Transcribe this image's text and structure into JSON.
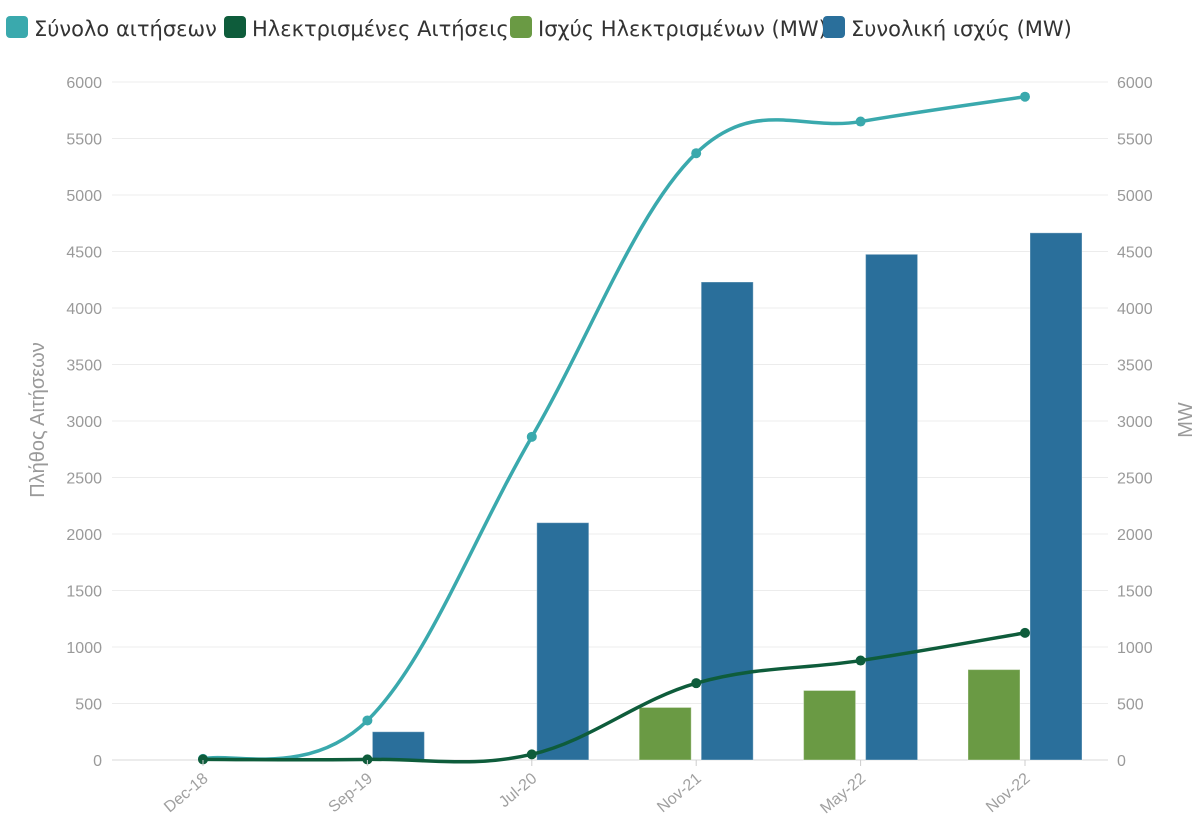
{
  "chart_data": {
    "type": "bar",
    "categories": [
      "Dec-18",
      "Sep-19",
      "Jul-20",
      "Nov-21",
      "May-22",
      "Nov-22"
    ],
    "series": [
      {
        "name": "Σύνολο αιτήσεων",
        "kind": "line",
        "axis": "left",
        "color": "#3aa9ad",
        "values": [
          10,
          350,
          2860,
          5370,
          5650,
          5870
        ]
      },
      {
        "name": "Ηλεκτρισμένες Αιτήσεις",
        "kind": "line",
        "axis": "left",
        "color": "#0e5c3b",
        "values": [
          5,
          5,
          50,
          680,
          880,
          1125
        ]
      },
      {
        "name": "Ισχύς Ηλεκτρισμένων (MW)",
        "kind": "bar",
        "axis": "right",
        "color": "#6a9a44",
        "values": [
          0,
          0,
          0,
          465,
          615,
          800
        ]
      },
      {
        "name": "Συνολική ισχύς (MW)",
        "kind": "bar",
        "axis": "right",
        "color": "#2a6f9b",
        "values": [
          0,
          250,
          2100,
          4230,
          4475,
          4665
        ]
      }
    ],
    "ylabel": "Πλήθος Αιτήσεων",
    "y2label": "MW",
    "ylim": [
      0,
      6000
    ],
    "y2lim": [
      0,
      6000
    ],
    "yticks": [
      "0",
      "500",
      "1000",
      "1500",
      "2000",
      "2500",
      "3000",
      "3500",
      "4000",
      "4500",
      "5000",
      "5500",
      "6000"
    ],
    "grid": true,
    "legend": "top"
  }
}
